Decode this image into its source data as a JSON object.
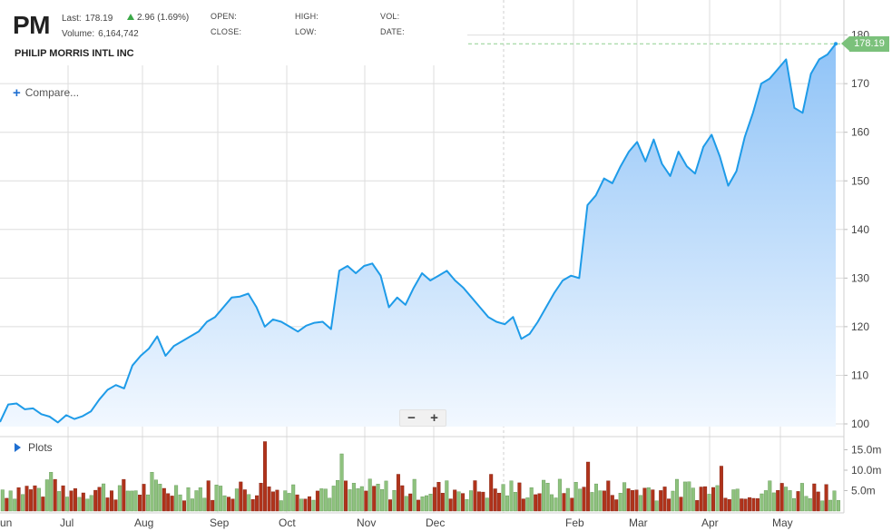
{
  "header": {
    "symbol": "PM",
    "company": "PHILIP MORRIS INTL INC",
    "last_label": "Last:",
    "last_value": "178.19",
    "change": "2.96 (1.69%)",
    "volume_label": "Volume:",
    "volume_value": "6,164,742",
    "open_label": "OPEN:",
    "high_label": "HIGH:",
    "vol_label": "VOL:",
    "close_label": "CLOSE:",
    "low_label": "LOW:",
    "date_label": "DATE:"
  },
  "compare_label": "Compare...",
  "plots_label": "Plots",
  "zoom": {
    "minus": "−",
    "plus": "+"
  },
  "price_tag": "178.19",
  "colors": {
    "line": "#1e9be8",
    "area_top": "#8fc3f7",
    "area_bottom": "#eef6fe",
    "vol_up": "#8ec27e",
    "vol_down": "#b0331b",
    "last_price": "#7bc17b",
    "grid": "#dedede"
  },
  "chart_data": {
    "type": "area",
    "x_axis": {
      "ticks": [
        "Jun",
        "Jul",
        "Aug",
        "Sep",
        "Oct",
        "Nov",
        "Dec",
        "Feb",
        "Mar",
        "Apr",
        "May"
      ]
    },
    "y_axis": {
      "ticks": [
        100,
        110,
        120,
        130,
        140,
        150,
        160,
        170,
        180
      ],
      "range": [
        98.5,
        180
      ]
    },
    "volume_axis": {
      "ticks": [
        "5.0m",
        "10.0m",
        "15.0m"
      ],
      "range_millions": [
        0,
        17
      ]
    },
    "last_price": 178.19,
    "price_keypoints": [
      [
        "Jun",
        100.4
      ],
      [
        "Jun",
        104.0
      ],
      [
        "Jun",
        104.2
      ],
      [
        "Jun",
        103.0
      ],
      [
        "Jun",
        103.2
      ],
      [
        "Jun",
        102.0
      ],
      [
        "Jun",
        101.5
      ],
      [
        "Jun",
        100.3
      ],
      [
        "Jul",
        101.8
      ],
      [
        "Jul",
        101.0
      ],
      [
        "Jul",
        101.6
      ],
      [
        "Jul",
        102.6
      ],
      [
        "Jul",
        105.0
      ],
      [
        "Jul",
        107.0
      ],
      [
        "Jul",
        108.0
      ],
      [
        "Jul",
        107.3
      ],
      [
        "Jul",
        112.0
      ],
      [
        "Jul",
        114.0
      ],
      [
        "Jul",
        115.5
      ],
      [
        "Aug",
        118.0
      ],
      [
        "Aug",
        114.0
      ],
      [
        "Aug",
        116.0
      ],
      [
        "Aug",
        117.0
      ],
      [
        "Aug",
        118.0
      ],
      [
        "Aug",
        119.0
      ],
      [
        "Aug",
        121.0
      ],
      [
        "Aug",
        122.0
      ],
      [
        "Aug",
        124.0
      ],
      [
        "Sep",
        126.0
      ],
      [
        "Sep",
        126.2
      ],
      [
        "Sep",
        126.8
      ],
      [
        "Sep",
        124.0
      ],
      [
        "Sep",
        120.0
      ],
      [
        "Sep",
        121.5
      ],
      [
        "Sep",
        121.0
      ],
      [
        "Oct",
        120.0
      ],
      [
        "Oct",
        119.0
      ],
      [
        "Oct",
        120.2
      ],
      [
        "Oct",
        120.8
      ],
      [
        "Oct",
        121.0
      ],
      [
        "Oct",
        119.5
      ],
      [
        "Oct",
        131.5
      ],
      [
        "Oct",
        132.5
      ],
      [
        "Oct",
        131.0
      ],
      [
        "Oct",
        132.5
      ],
      [
        "Nov",
        133.0
      ],
      [
        "Nov",
        130.5
      ],
      [
        "Nov",
        124.0
      ],
      [
        "Nov",
        126.0
      ],
      [
        "Nov",
        124.5
      ],
      [
        "Nov",
        128.0
      ],
      [
        "Nov",
        131.0
      ],
      [
        "Nov",
        129.5
      ],
      [
        "Nov",
        130.5
      ],
      [
        "Dec",
        131.5
      ],
      [
        "Dec",
        129.5
      ],
      [
        "Dec",
        128.0
      ],
      [
        "Dec",
        126.0
      ],
      [
        "Dec",
        124.0
      ],
      [
        "Dec",
        122.0
      ],
      [
        "Dec",
        121.0
      ],
      [
        "Dec",
        120.5
      ],
      [
        "Dec",
        122.0
      ],
      [
        "Dec",
        117.5
      ],
      [
        "Dec",
        118.5
      ],
      [
        "Dec",
        121.0
      ],
      [
        "Dec",
        124.0
      ],
      [
        "Dec",
        127.0
      ],
      [
        "Dec",
        129.5
      ],
      [
        "Feb",
        130.5
      ],
      [
        "Feb",
        130.0
      ],
      [
        "Feb",
        145.0
      ],
      [
        "Feb",
        147.0
      ],
      [
        "Feb",
        150.5
      ],
      [
        "Feb",
        149.5
      ],
      [
        "Feb",
        153.0
      ],
      [
        "Feb",
        156.0
      ],
      [
        "Feb",
        158.0
      ],
      [
        "Mar",
        154.0
      ],
      [
        "Mar",
        158.5
      ],
      [
        "Mar",
        153.5
      ],
      [
        "Mar",
        151.0
      ],
      [
        "Mar",
        156.0
      ],
      [
        "Mar",
        153.0
      ],
      [
        "Mar",
        151.5
      ],
      [
        "Mar",
        157.0
      ],
      [
        "Mar",
        159.5
      ],
      [
        "Apr",
        155.0
      ],
      [
        "Apr",
        149.0
      ],
      [
        "Apr",
        152.0
      ],
      [
        "Apr",
        159.0
      ],
      [
        "Apr",
        164.0
      ],
      [
        "Apr",
        170.0
      ],
      [
        "Apr",
        171.0
      ],
      [
        "Apr",
        173.0
      ],
      [
        "Apr",
        175.0
      ],
      [
        "May",
        165.0
      ],
      [
        "May",
        164.0
      ],
      [
        "May",
        172.0
      ],
      [
        "May",
        175.0
      ],
      [
        "May",
        176.0
      ],
      [
        "May",
        178.19
      ]
    ],
    "volume_note": "daily volume bars, up days green, down days red, mostly 3m-10m with spikes near 17m (late Sep), 14m (late Oct) and 12m (early Feb)"
  }
}
